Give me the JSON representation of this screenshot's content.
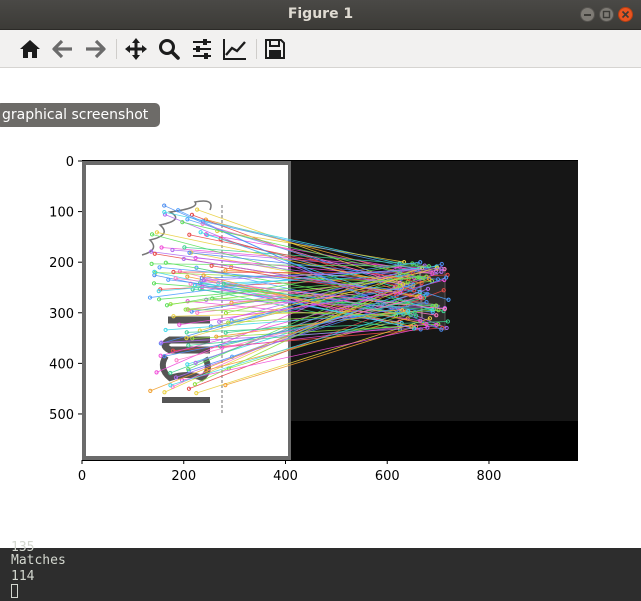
{
  "window": {
    "title": "Figure 1"
  },
  "toolbar": {
    "buttons": [
      {
        "name": "home",
        "icon": "home-icon"
      },
      {
        "name": "back",
        "icon": "arrow-left-icon"
      },
      {
        "name": "forward",
        "icon": "arrow-right-icon"
      },
      {
        "name": "pan",
        "icon": "move-icon"
      },
      {
        "name": "zoom",
        "icon": "magnifier-icon"
      },
      {
        "name": "configure-subplots",
        "icon": "sliders-icon"
      },
      {
        "name": "edit-axis",
        "icon": "line-chart-icon"
      },
      {
        "name": "save",
        "icon": "floppy-disk-icon"
      }
    ]
  },
  "tooltip": {
    "text": "graphical screenshot"
  },
  "chart_data": {
    "type": "image",
    "xlim": [
      0,
      975
    ],
    "ylim": [
      591,
      0
    ],
    "xticks": [
      0,
      200,
      400,
      600,
      800
    ],
    "yticks": [
      0,
      100,
      200,
      300,
      400,
      500
    ],
    "grid": false
  },
  "terminal": {
    "lines": [
      "135",
      "Matches",
      "114"
    ]
  },
  "colors": {
    "titlebar": "#3c3b37",
    "close_button": "#e95420",
    "toolbar_bg": "#f2f1f0",
    "terminal_bg": "#2d2d2d",
    "terminal_text": "#d3d7cf"
  }
}
